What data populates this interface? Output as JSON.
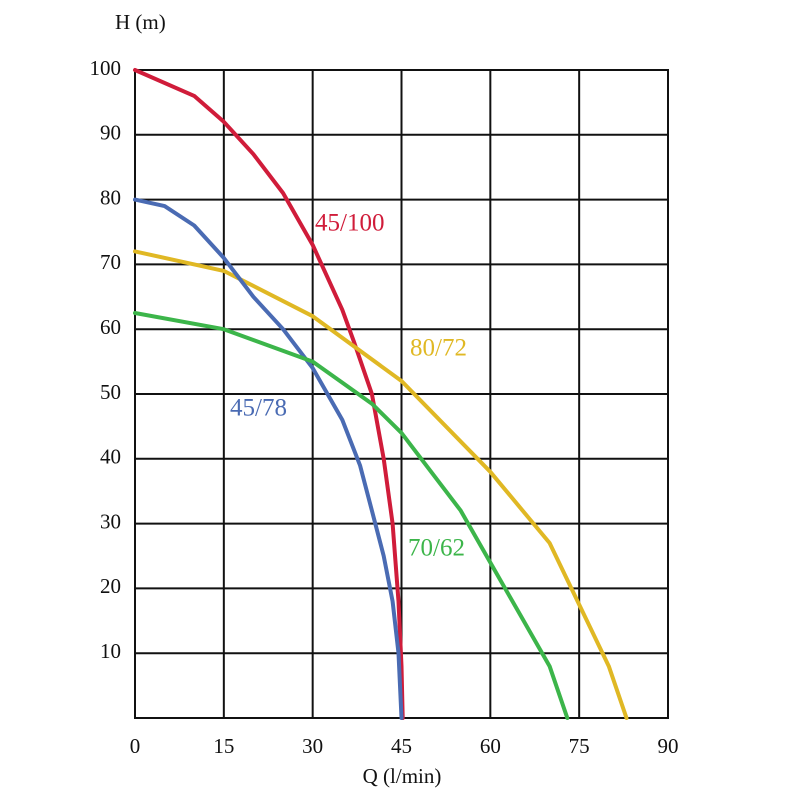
{
  "chart_data": {
    "type": "line",
    "ylabel": "H (m)",
    "xlabel": "Q (l/min)",
    "xlim": [
      0,
      90
    ],
    "xticks": [
      0,
      15,
      30,
      45,
      60,
      75,
      90
    ],
    "ylim": [
      0,
      100
    ],
    "yticks": [
      10,
      20,
      30,
      40,
      50,
      60,
      70,
      80,
      90,
      100
    ],
    "grid": true,
    "series": [
      {
        "name": "45/100",
        "color": "#d01c3a",
        "x": [
          0,
          10,
          15,
          20,
          25,
          30,
          35,
          37,
          40,
          42,
          43.5,
          44.5,
          45,
          45.2
        ],
        "values": [
          100,
          96,
          92,
          87,
          81,
          73,
          63,
          58,
          50,
          40,
          30,
          18,
          8,
          0
        ]
      },
      {
        "name": "80/72",
        "color": "#e0b824",
        "x": [
          0,
          15,
          30,
          45,
          60,
          70,
          75,
          80,
          83
        ],
        "values": [
          72,
          69,
          62,
          52,
          38,
          27,
          17.5,
          8,
          0
        ]
      },
      {
        "name": "45/78",
        "color": "#4a6bb3",
        "x": [
          0,
          5,
          10,
          15,
          20,
          25,
          30,
          35,
          38,
          40,
          42,
          43.5,
          44.5,
          45
        ],
        "values": [
          80,
          79,
          76,
          71,
          65,
          60,
          54,
          46,
          39,
          32,
          25,
          18,
          10,
          0
        ]
      },
      {
        "name": "70/62",
        "color": "#3cb54a",
        "x": [
          0,
          15,
          30,
          40,
          45,
          55,
          60,
          65,
          70,
          73
        ],
        "values": [
          62.5,
          60,
          55,
          48.5,
          44,
          32,
          24,
          16,
          8,
          0
        ]
      }
    ]
  }
}
